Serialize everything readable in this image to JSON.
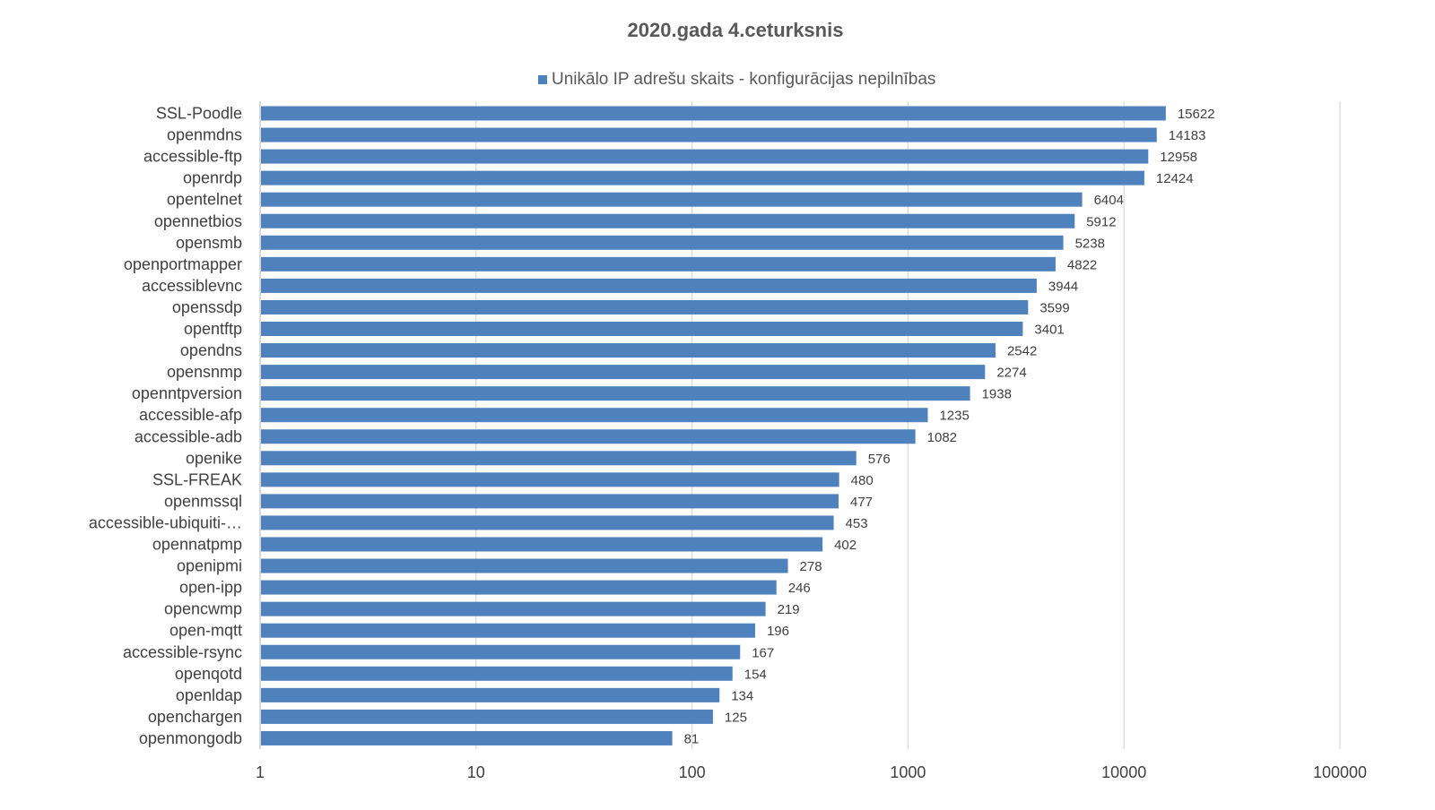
{
  "chart_data": {
    "type": "bar",
    "orientation": "horizontal",
    "title": "2020.gada  4.ceturksnis",
    "legend": {
      "position": "top",
      "label": "Unikālo IP adrešu skaits  -  konfigurācijas nepilnības"
    },
    "x_scale": "log",
    "xlim": [
      1,
      100000
    ],
    "x_ticks": [
      1,
      10,
      100,
      1000,
      10000,
      100000
    ],
    "x_tick_labels": [
      "1",
      "10",
      "100",
      "1000",
      "10000",
      "100000"
    ],
    "grid": true,
    "bar_color": "#4f81bd",
    "categories": [
      "SSL-Poodle",
      "openmdns",
      "accessible-ftp",
      "openrdp",
      "opentelnet",
      "opennetbios",
      "opensmb",
      "openportmapper",
      "accessiblevnc",
      "openssdp",
      "opentftp",
      "opendns",
      "opensnmp",
      "openntpversion",
      "accessible-afp",
      "accessible-adb",
      "openike",
      "SSL-FREAK",
      "openmssql",
      "accessible-ubiquiti-…",
      "opennatpmp",
      "openipmi",
      "open-ipp",
      "opencwmp",
      "open-mqtt",
      "accessible-rsync",
      "openqotd",
      "openldap",
      "openchargen",
      "openmongodb"
    ],
    "series": [
      {
        "name": "Unikālo IP adrešu skaits  -  konfigurācijas nepilnības",
        "values": [
          15622,
          14183,
          12958,
          12424,
          6404,
          5912,
          5238,
          4822,
          3944,
          3599,
          3401,
          2542,
          2274,
          1938,
          1235,
          1082,
          576,
          480,
          477,
          453,
          402,
          278,
          246,
          219,
          196,
          167,
          154,
          134,
          125,
          81
        ],
        "value_labels": [
          "15622",
          "14183",
          "12958",
          "12424",
          "6404",
          "5912",
          "5238",
          "4822",
          "3944",
          "3599",
          "3401",
          "2542",
          "2274",
          "1938",
          "1235",
          "1082",
          "576",
          "480",
          "477",
          "453",
          "402",
          "278",
          "246",
          "219",
          "196",
          "167",
          "154",
          "134",
          "125",
          "81"
        ]
      }
    ]
  }
}
